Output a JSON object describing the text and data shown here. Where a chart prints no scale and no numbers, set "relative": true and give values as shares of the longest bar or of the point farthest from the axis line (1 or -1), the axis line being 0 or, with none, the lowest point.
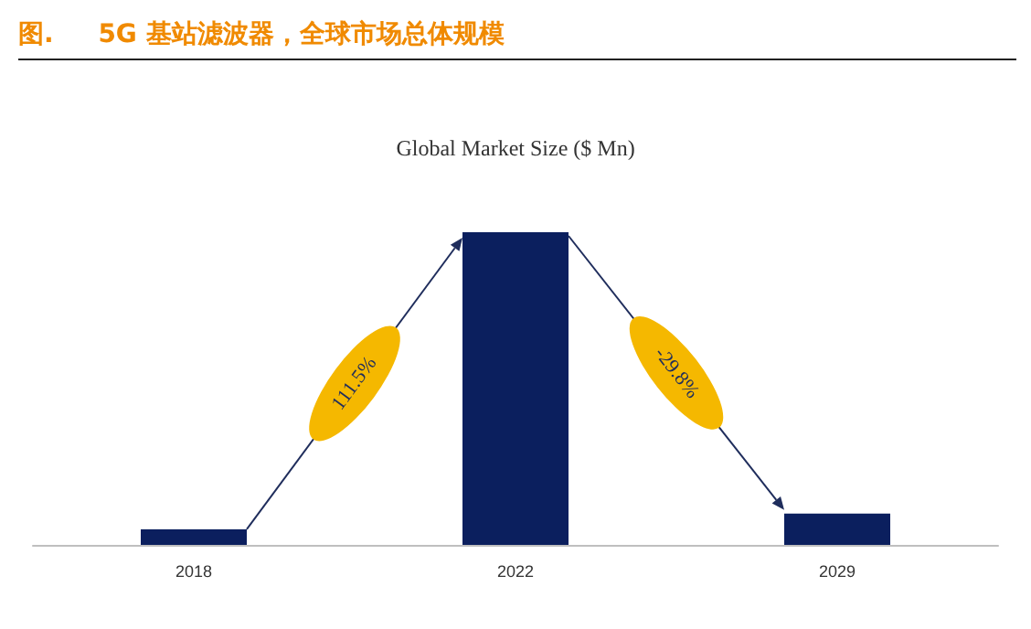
{
  "chart_data": {
    "type": "bar",
    "title": "图.     5G 基站滤波器，全球市场总体规模",
    "subtitle": "Global Market Size ($ Mn)",
    "categories": [
      "2018",
      "2022",
      "2029"
    ],
    "relative": true,
    "values": [
      0.05,
      1,
      0.1
    ],
    "color": "#0b1f5e",
    "annotations": [
      "111.5%",
      "-29.8%"
    ]
  }
}
